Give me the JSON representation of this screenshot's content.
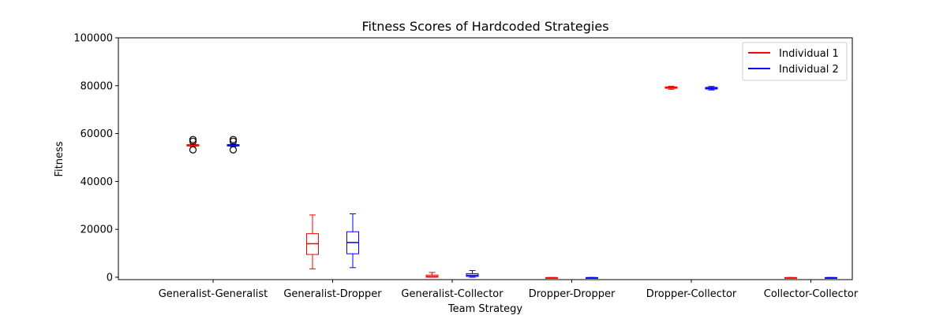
{
  "chart_data": {
    "type": "boxplot",
    "title": "Fitness Scores of Hardcoded Strategies",
    "xlabel": "Team Strategy",
    "ylabel": "Fitness",
    "ylim": [
      -1000,
      100000
    ],
    "yticks": [
      0,
      20000,
      40000,
      60000,
      80000,
      100000
    ],
    "ytick_labels": [
      "0",
      "20000",
      "40000",
      "60000",
      "80000",
      "100000"
    ],
    "categories": [
      "Generalist-Generalist",
      "Generalist-Dropper",
      "Generalist-Collector",
      "Dropper-Dropper",
      "Dropper-Collector",
      "Collector-Collector"
    ],
    "legend_position": "top-right",
    "grid": false,
    "series": [
      {
        "name": "Individual 1",
        "color": "#ff0000",
        "boxes": [
          {
            "whislo": 54500,
            "q1": 54800,
            "med": 55000,
            "q3": 55400,
            "whishi": 55800,
            "fliers": [
              53200,
              56800,
              57500
            ]
          },
          {
            "whislo": 3500,
            "q1": 9500,
            "med": 14000,
            "q3": 18200,
            "whishi": 26000,
            "fliers": []
          },
          {
            "whislo": 0,
            "q1": 0,
            "med": 300,
            "q3": 900,
            "whishi": 2000,
            "fliers": []
          },
          {
            "whislo": -300,
            "q1": -250,
            "med": -200,
            "q3": -150,
            "whishi": -100,
            "fliers": []
          },
          {
            "whislo": 78500,
            "q1": 78900,
            "med": 79200,
            "q3": 79500,
            "whishi": 79800,
            "fliers": []
          },
          {
            "whislo": -300,
            "q1": -250,
            "med": -200,
            "q3": -150,
            "whishi": -100,
            "fliers": []
          }
        ]
      },
      {
        "name": "Individual 2",
        "color": "#0000ff",
        "boxes": [
          {
            "whislo": 54500,
            "q1": 54800,
            "med": 55000,
            "q3": 55400,
            "whishi": 55800,
            "fliers": [
              53200,
              56800,
              57500
            ]
          },
          {
            "whislo": 4000,
            "q1": 9800,
            "med": 14500,
            "q3": 19000,
            "whishi": 26500,
            "fliers": []
          },
          {
            "whislo": 0,
            "q1": 300,
            "med": 800,
            "q3": 1500,
            "whishi": 2800,
            "fliers": []
          },
          {
            "whislo": -300,
            "q1": -250,
            "med": -200,
            "q3": -150,
            "whishi": -100,
            "fliers": []
          },
          {
            "whislo": 78200,
            "q1": 78600,
            "med": 79000,
            "q3": 79300,
            "whishi": 79700,
            "fliers": []
          },
          {
            "whislo": -300,
            "q1": -250,
            "med": -200,
            "q3": -150,
            "whishi": -100,
            "fliers": []
          }
        ]
      }
    ]
  }
}
